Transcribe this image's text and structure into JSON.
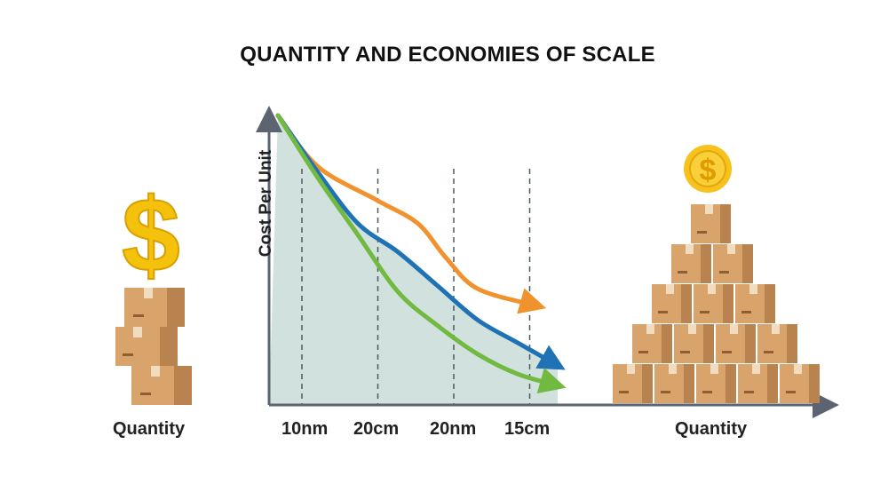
{
  "colors": {
    "background": "#ffffff",
    "axis": "#5b6470",
    "area": "#cfe0dc",
    "orange": "#f0922e",
    "blue": "#1f72b4",
    "green": "#72b942",
    "box": "#d8a46c",
    "box_dark": "#b9834f",
    "coin": "#f7c21d",
    "dollar": "#f4c20d"
  },
  "icons": {
    "left_symbol": "dollar-sign-icon",
    "left_stack": "cardboard-box-stack-icon",
    "right_symbol": "dollar-coin-icon",
    "right_stack": "cardboard-box-pyramid-icon"
  },
  "chart_data": {
    "type": "line",
    "title": "QUANTITY AND ECONOMIES OF SCALE",
    "ylabel": "Cost Per Unit",
    "xlabel": "",
    "x_tick_labels": [
      "10nm",
      "20cm",
      "20nm",
      "15cm"
    ],
    "grid": "dashed vertical lines at tick positions",
    "area_under_curve": true,
    "series": [
      {
        "color": "orange",
        "points": [
          [
            0,
            100
          ],
          [
            0.5,
            82
          ],
          [
            1.25,
            70
          ],
          [
            1.75,
            62
          ],
          [
            2.1,
            50
          ],
          [
            2.5,
            39
          ],
          [
            3.25,
            33
          ]
        ]
      },
      {
        "color": "blue",
        "points": [
          [
            0,
            100
          ],
          [
            0.5,
            80
          ],
          [
            1.0,
            62
          ],
          [
            1.5,
            52
          ],
          [
            2.0,
            40
          ],
          [
            2.5,
            28
          ],
          [
            3.0,
            20
          ],
          [
            3.5,
            12
          ]
        ]
      },
      {
        "color": "green",
        "points": [
          [
            0,
            100
          ],
          [
            0.5,
            78
          ],
          [
            1.0,
            58
          ],
          [
            1.5,
            38
          ],
          [
            2.0,
            26
          ],
          [
            2.5,
            16
          ],
          [
            3.0,
            9
          ],
          [
            3.5,
            5
          ]
        ]
      }
    ]
  },
  "side_labels": {
    "left": "Quantity",
    "right": "Quantity"
  }
}
